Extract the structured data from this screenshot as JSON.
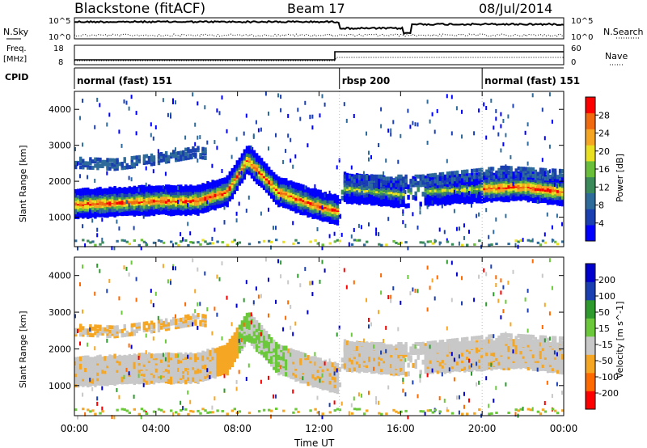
{
  "header": {
    "title": "Blackstone (fitACF)",
    "beam": "Beam 17",
    "date": "08/Jul/2014"
  },
  "top_panel": {
    "left_label": "N.Sky",
    "right_label": "N.Search",
    "left_ticks": [
      "10^5",
      "10^0"
    ],
    "right_ticks": [
      "10^5",
      "10^0"
    ]
  },
  "freq_panel": {
    "left_label_1": "Freq.",
    "left_label_2": "[MHz]",
    "right_label": "Nave",
    "left_ticks": [
      "18",
      "8"
    ],
    "right_ticks": [
      "60",
      "0"
    ]
  },
  "cpid_panel": {
    "label": "CPID",
    "segments": [
      {
        "name": "normal (fast) 151",
        "start_h": 0,
        "end_h": 13
      },
      {
        "name": "rbsp 200",
        "start_h": 13,
        "end_h": 20
      },
      {
        "name": "normal (fast) 151",
        "start_h": 20,
        "end_h": 24
      }
    ]
  },
  "x_axis": {
    "label": "Time UT",
    "ticks": [
      "00:00",
      "04:00",
      "08:00",
      "12:00",
      "16:00",
      "20:00",
      "00:00"
    ]
  },
  "power_panel": {
    "ylabel": "Slant Range [km]",
    "yticks": [
      "4000",
      "3000",
      "2000",
      "1000"
    ],
    "colorbar_label": "Power [dB]",
    "colorbar_ticks": [
      "28",
      "24",
      "20",
      "16",
      "12",
      "8",
      "4"
    ],
    "colors": [
      "#0000ff",
      "#1a3fb0",
      "#2e6a9a",
      "#3a8a5a",
      "#6abf3a",
      "#e8e020",
      "#f5a623",
      "#f06a10",
      "#ff0000"
    ]
  },
  "velocity_panel": {
    "ylabel": "Slant Range [km]",
    "yticks": [
      "4000",
      "3000",
      "2000",
      "1000"
    ],
    "colorbar_label": "Velocity [m s^-1]",
    "colorbar_ticks": [
      "200",
      "100",
      "50",
      "15",
      "-15",
      "-50",
      "-100",
      "-200"
    ],
    "colors": [
      "#ff0000",
      "#ff6a00",
      "#f5a623",
      "#c8c8c8",
      "#6ac83a",
      "#2e9a2e",
      "#1a3fb0",
      "#0000cc"
    ]
  },
  "chart_data": {
    "type": "heatmap",
    "x_units": "hours UT",
    "xlim": [
      0,
      24
    ],
    "ylim_km": [
      180,
      4500
    ],
    "power_range_db": [
      0,
      30
    ],
    "velocity_range": [
      -250,
      250
    ],
    "main_band_range_km": [
      [
        0,
        1350
      ],
      [
        2,
        1400
      ],
      [
        4,
        1450
      ],
      [
        6,
        1450
      ],
      [
        7.5,
        1700
      ],
      [
        8.5,
        2600
      ],
      [
        10,
        1700
      ],
      [
        12,
        1300
      ],
      [
        13,
        1150
      ],
      [
        13.2,
        1800
      ],
      [
        16,
        1650
      ],
      [
        17,
        1700
      ],
      [
        20,
        1800
      ],
      [
        22,
        1850
      ],
      [
        24,
        1700
      ]
    ],
    "upper_band_range_km": [
      [
        0.2,
        2500
      ],
      [
        2,
        2450
      ],
      [
        4,
        2600
      ],
      [
        6,
        2800
      ],
      [
        13.2,
        2000
      ],
      [
        17,
        2000
      ],
      [
        21,
        2250
      ],
      [
        24,
        2150
      ]
    ]
  }
}
